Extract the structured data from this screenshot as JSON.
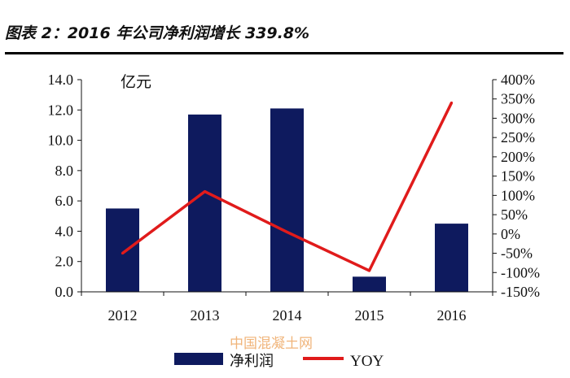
{
  "header": {
    "title": "图表 2：2016 年公司净利润增长 339.8%"
  },
  "watermark": "中国混凝土网",
  "chart_data": {
    "type": "bar",
    "categories": [
      "2012",
      "2013",
      "2014",
      "2015",
      "2016"
    ],
    "series": [
      {
        "name": "净利润",
        "kind": "bar",
        "axis": "left",
        "color": "#0e1a5e",
        "values": [
          5.5,
          11.7,
          12.1,
          1.0,
          4.5
        ]
      },
      {
        "name": "YOY",
        "kind": "line",
        "axis": "right",
        "color": "#e01b1b",
        "values": [
          -50,
          110,
          5,
          -95,
          340
        ]
      }
    ],
    "y_left": {
      "unit": "亿元",
      "range": [
        0,
        14
      ],
      "ticks": [
        "0.0",
        "2.0",
        "4.0",
        "6.0",
        "8.0",
        "10.0",
        "12.0",
        "14.0"
      ]
    },
    "y_right": {
      "range": [
        -150,
        400
      ],
      "ticks": [
        "-150%",
        "-100%",
        "-50%",
        "0%",
        "50%",
        "100%",
        "150%",
        "200%",
        "250%",
        "300%",
        "350%",
        "400%"
      ]
    },
    "grid": false,
    "legend_position": "bottom"
  }
}
